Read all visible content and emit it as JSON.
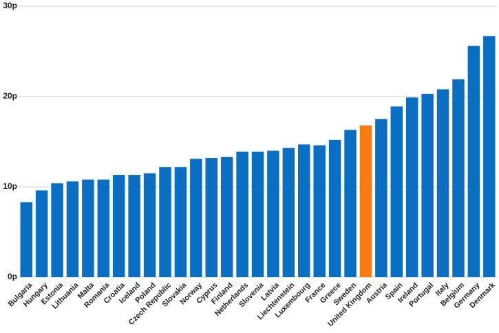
{
  "chart_data": {
    "type": "bar",
    "title": "",
    "xlabel": "",
    "ylabel": "",
    "ylim": [
      0,
      30
    ],
    "yticks": [
      0,
      10,
      20,
      30
    ],
    "ytick_labels": [
      "0p",
      "10p",
      "20p",
      "30p"
    ],
    "grid": true,
    "colors": {
      "default": "#0a6fc2",
      "highlight": "#f77b0d"
    },
    "highlight_category": "United Kingdom",
    "categories": [
      "Bulgaria",
      "Hungary",
      "Estonia",
      "Lithuania",
      "Malta",
      "Romania",
      "Croatia",
      "Iceland",
      "Poland",
      "Czech Republic",
      "Slovakia",
      "Norway",
      "Cyprus",
      "Finland",
      "Netherlands",
      "Slovenia",
      "Latvia",
      "Liechtenstein",
      "Luxembourg",
      "France",
      "Greece",
      "Sweden",
      "United Kingdom",
      "Austria",
      "Spain",
      "Ireland",
      "Portugal",
      "Italy",
      "Belgium",
      "Germany",
      "Denmark"
    ],
    "values": [
      8.3,
      9.6,
      10.4,
      10.6,
      10.8,
      10.8,
      11.3,
      11.3,
      11.5,
      12.2,
      12.2,
      13.1,
      13.2,
      13.3,
      13.9,
      13.9,
      14.0,
      14.3,
      14.7,
      14.6,
      15.2,
      16.3,
      16.8,
      17.5,
      18.9,
      19.9,
      20.3,
      20.8,
      21.9,
      25.6,
      26.7
    ]
  }
}
